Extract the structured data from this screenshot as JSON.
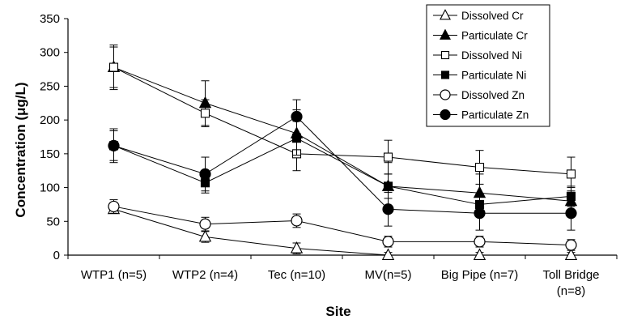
{
  "chart_data": {
    "type": "line",
    "title": "",
    "xlabel": "Site",
    "ylabel": "Concentration (μg/L)",
    "ylim": [
      0,
      350
    ],
    "yticks": [
      0,
      50,
      100,
      150,
      200,
      250,
      300,
      350
    ],
    "grid": false,
    "legend_position": "top-right",
    "categories": [
      [
        "WTP1 (n=5)"
      ],
      [
        "WTP2 (n=4)"
      ],
      [
        "Tec (n=10)"
      ],
      [
        "MV(n=5)"
      ],
      [
        "Big Pipe (n=7)"
      ],
      [
        "Toll Bridge",
        "(n=8)"
      ]
    ],
    "series": [
      {
        "name": "Dissolved Cr",
        "marker": "triangle-open",
        "values": [
          68,
          27,
          10,
          0,
          0,
          0
        ],
        "errors": [
          6,
          8,
          8,
          4,
          4,
          4
        ]
      },
      {
        "name": "Particulate Cr",
        "marker": "triangle-filled",
        "values": [
          278,
          225,
          180,
          102,
          92,
          80
        ],
        "errors": [
          30,
          33,
          35,
          35,
          28,
          20
        ]
      },
      {
        "name": "Dissolved Ni",
        "marker": "square-open",
        "values": [
          278,
          210,
          150,
          145,
          130,
          120
        ],
        "errors": [
          33,
          20,
          25,
          25,
          25,
          25
        ]
      },
      {
        "name": "Particulate Ni",
        "marker": "square-filled",
        "values": [
          162,
          107,
          173,
          102,
          75,
          87
        ],
        "errors": [
          22,
          15,
          25,
          18,
          15,
          15
        ]
      },
      {
        "name": "Dissolved Zn",
        "marker": "circle-open",
        "values": [
          72,
          46,
          51,
          20,
          20,
          15
        ],
        "errors": [
          10,
          10,
          10,
          8,
          8,
          8
        ]
      },
      {
        "name": "Particulate Zn",
        "marker": "circle-filled",
        "values": [
          162,
          120,
          205,
          68,
          62,
          62
        ],
        "errors": [
          25,
          25,
          25,
          25,
          25,
          25
        ]
      }
    ]
  }
}
